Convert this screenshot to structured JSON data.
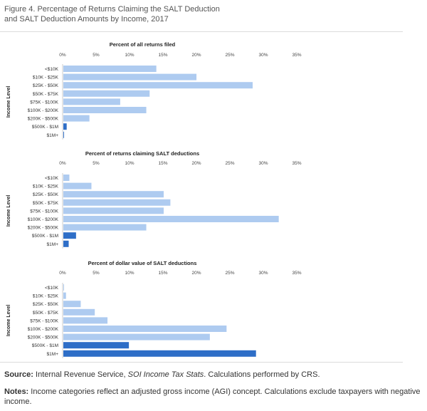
{
  "figure": {
    "title_line1": "Figure 4. Percentage of Returns Claiming the SALT Deduction",
    "title_line2": "and SALT Deduction Amounts by Income, 2017",
    "source_label": "Source:",
    "source_text_1": "Internal Revenue Service, ",
    "source_text_italic": "SOI Income Tax Stats",
    "source_text_2": ". Calculations performed by CRS.",
    "notes_label": "Notes:",
    "notes_text": "Income categories reflect an adjusted gross income (AGI) concept. Calculations exclude taxpayers with negative income."
  },
  "chart_data": [
    {
      "type": "bar",
      "orientation": "horizontal",
      "title": "Percent of all returns filed",
      "ylabel": "Income Level",
      "xlim": [
        0,
        35
      ],
      "xticks": [
        "0%",
        "5%",
        "10%",
        "15%",
        "20%",
        "25%",
        "30%",
        "35%"
      ],
      "categories": [
        "<$10K",
        "$10K - $25K",
        "$25K - $50K",
        "$50K - $75K",
        "$75K - $100K",
        "$100K - $200K",
        "$200K - $500K",
        "$500K - $1M",
        "$1M+"
      ],
      "values": [
        13.9,
        19.9,
        28.3,
        12.9,
        8.5,
        12.4,
        3.9,
        0.5,
        0.1
      ],
      "colors": [
        "#aecbf0",
        "#aecbf0",
        "#aecbf0",
        "#aecbf0",
        "#aecbf0",
        "#aecbf0",
        "#aecbf0",
        "#2e6ec7",
        "#2e6ec7"
      ],
      "grid": false,
      "legend": "none"
    },
    {
      "type": "bar",
      "orientation": "horizontal",
      "title": "Percent of returns claiming SALT deductions",
      "ylabel": "Income Level",
      "xlim": [
        0,
        35
      ],
      "xticks": [
        "0%",
        "5%",
        "10%",
        "15%",
        "20%",
        "25%",
        "30%",
        "35%"
      ],
      "categories": [
        "<$10K",
        "$10K - $25K",
        "$25K - $50K",
        "$50K - $75K",
        "$75K - $100K",
        "$100K - $200K",
        "$200K - $500K",
        "$500K - $1M",
        "$1M+"
      ],
      "values": [
        0.9,
        4.2,
        15.0,
        16.0,
        15.0,
        32.2,
        12.4,
        1.9,
        0.8
      ],
      "colors": [
        "#aecbf0",
        "#aecbf0",
        "#aecbf0",
        "#aecbf0",
        "#aecbf0",
        "#aecbf0",
        "#aecbf0",
        "#2e6ec7",
        "#2e6ec7"
      ],
      "grid": false,
      "legend": "none"
    },
    {
      "type": "bar",
      "orientation": "horizontal",
      "title": "Percent of dollar value of SALT deductions",
      "ylabel": "Income Level",
      "xlim": [
        0,
        35
      ],
      "xticks": [
        "0%",
        "5%",
        "10%",
        "15%",
        "20%",
        "25%",
        "30%",
        "35%"
      ],
      "categories": [
        "<$10K",
        "$10K - $25K",
        "$25K - $50K",
        "$50K - $75K",
        "$75K - $100K",
        "$100K - $200K",
        "$200K - $500K",
        "$500K - $1M",
        "$1M+"
      ],
      "values": [
        0.1,
        0.4,
        2.6,
        4.7,
        6.6,
        24.4,
        21.9,
        9.8,
        28.8
      ],
      "colors": [
        "#aecbf0",
        "#aecbf0",
        "#aecbf0",
        "#aecbf0",
        "#aecbf0",
        "#aecbf0",
        "#aecbf0",
        "#2e6ec7",
        "#2e6ec7"
      ],
      "grid": false,
      "legend": "none"
    }
  ]
}
